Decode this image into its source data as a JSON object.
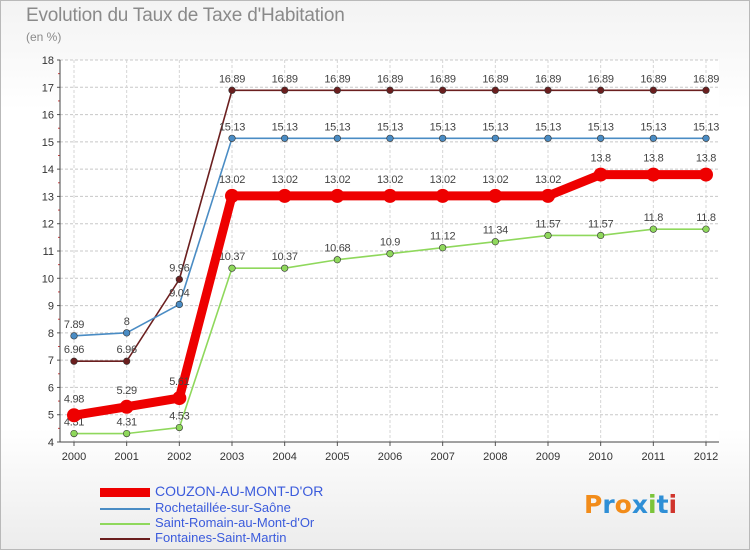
{
  "title": "Evolution du Taux de Taxe d'Habitation",
  "subtitle": "(en %)",
  "logo": {
    "text": "Proxiti",
    "colors": [
      "#f28c1a",
      "#2f8fd6",
      "#f28c1a",
      "#2f8fd6",
      "#7bc43a",
      "#2f8fd6",
      "#d0342c"
    ]
  },
  "chart_data": {
    "type": "line",
    "x": [
      "2000",
      "2001",
      "2002",
      "2003",
      "2004",
      "2005",
      "2006",
      "2007",
      "2008",
      "2009",
      "2010",
      "2011",
      "2012"
    ],
    "ylim": [
      4,
      18
    ],
    "yticks": [
      "4",
      "5",
      "6",
      "7",
      "8",
      "9",
      "10",
      "11",
      "12",
      "13",
      "14",
      "15",
      "16",
      "17",
      "18"
    ],
    "grid": true,
    "legend_position": "bottom-left",
    "series": [
      {
        "name": "Fontaines-Saint-Martin",
        "color": "#6b1f1f",
        "values": [
          6.96,
          6.96,
          9.96,
          16.89,
          16.89,
          16.89,
          16.89,
          16.89,
          16.89,
          16.89,
          16.89,
          16.89,
          16.89
        ],
        "labels": [
          "6.96",
          "6.96",
          "9.96",
          "16.89",
          "16.89",
          "16.89",
          "16.89",
          "16.89",
          "16.89",
          "16.89",
          "16.89",
          "16.89",
          "16.89"
        ]
      },
      {
        "name": "Rochetaillée-sur-Saône",
        "color": "#4a8cc4",
        "values": [
          7.89,
          8,
          9.04,
          15.13,
          15.13,
          15.13,
          15.13,
          15.13,
          15.13,
          15.13,
          15.13,
          15.13,
          15.13
        ],
        "labels": [
          "7.89",
          "8",
          "9.04",
          "15.13",
          "15.13",
          "15.13",
          "15.13",
          "15.13",
          "15.13",
          "15.13",
          "15.13",
          "15.13",
          "15.13"
        ]
      },
      {
        "name": "Saint-Romain-au-Mont-d'Or",
        "color": "#8fd85c",
        "values": [
          4.31,
          4.31,
          4.53,
          10.37,
          10.37,
          10.68,
          10.9,
          11.12,
          11.34,
          11.57,
          11.57,
          11.8,
          11.8
        ],
        "labels": [
          "4.31",
          "4.31",
          "4.53",
          "10.37",
          "10.37",
          "10.68",
          "10.9",
          "11.12",
          "11.34",
          "11.57",
          "11.57",
          "11.8",
          "11.8"
        ]
      },
      {
        "name": "COUZON-AU-MONT-D'OR",
        "color": "#ee0000",
        "values": [
          4.98,
          5.29,
          5.61,
          13.02,
          13.02,
          13.02,
          13.02,
          13.02,
          13.02,
          13.02,
          13.8,
          13.8,
          13.8
        ],
        "labels": [
          "4.98",
          "5.29",
          "5.61",
          "13.02",
          "13.02",
          "13.02",
          "13.02",
          "13.02",
          "13.02",
          "13.02",
          "13.8",
          "13.8",
          "13.8"
        ]
      }
    ],
    "legend": [
      "COUZON-AU-MONT-D'OR",
      "Rochetaillée-sur-Saône",
      "Saint-Romain-au-Mont-d'Or",
      "Fontaines-Saint-Martin"
    ]
  }
}
